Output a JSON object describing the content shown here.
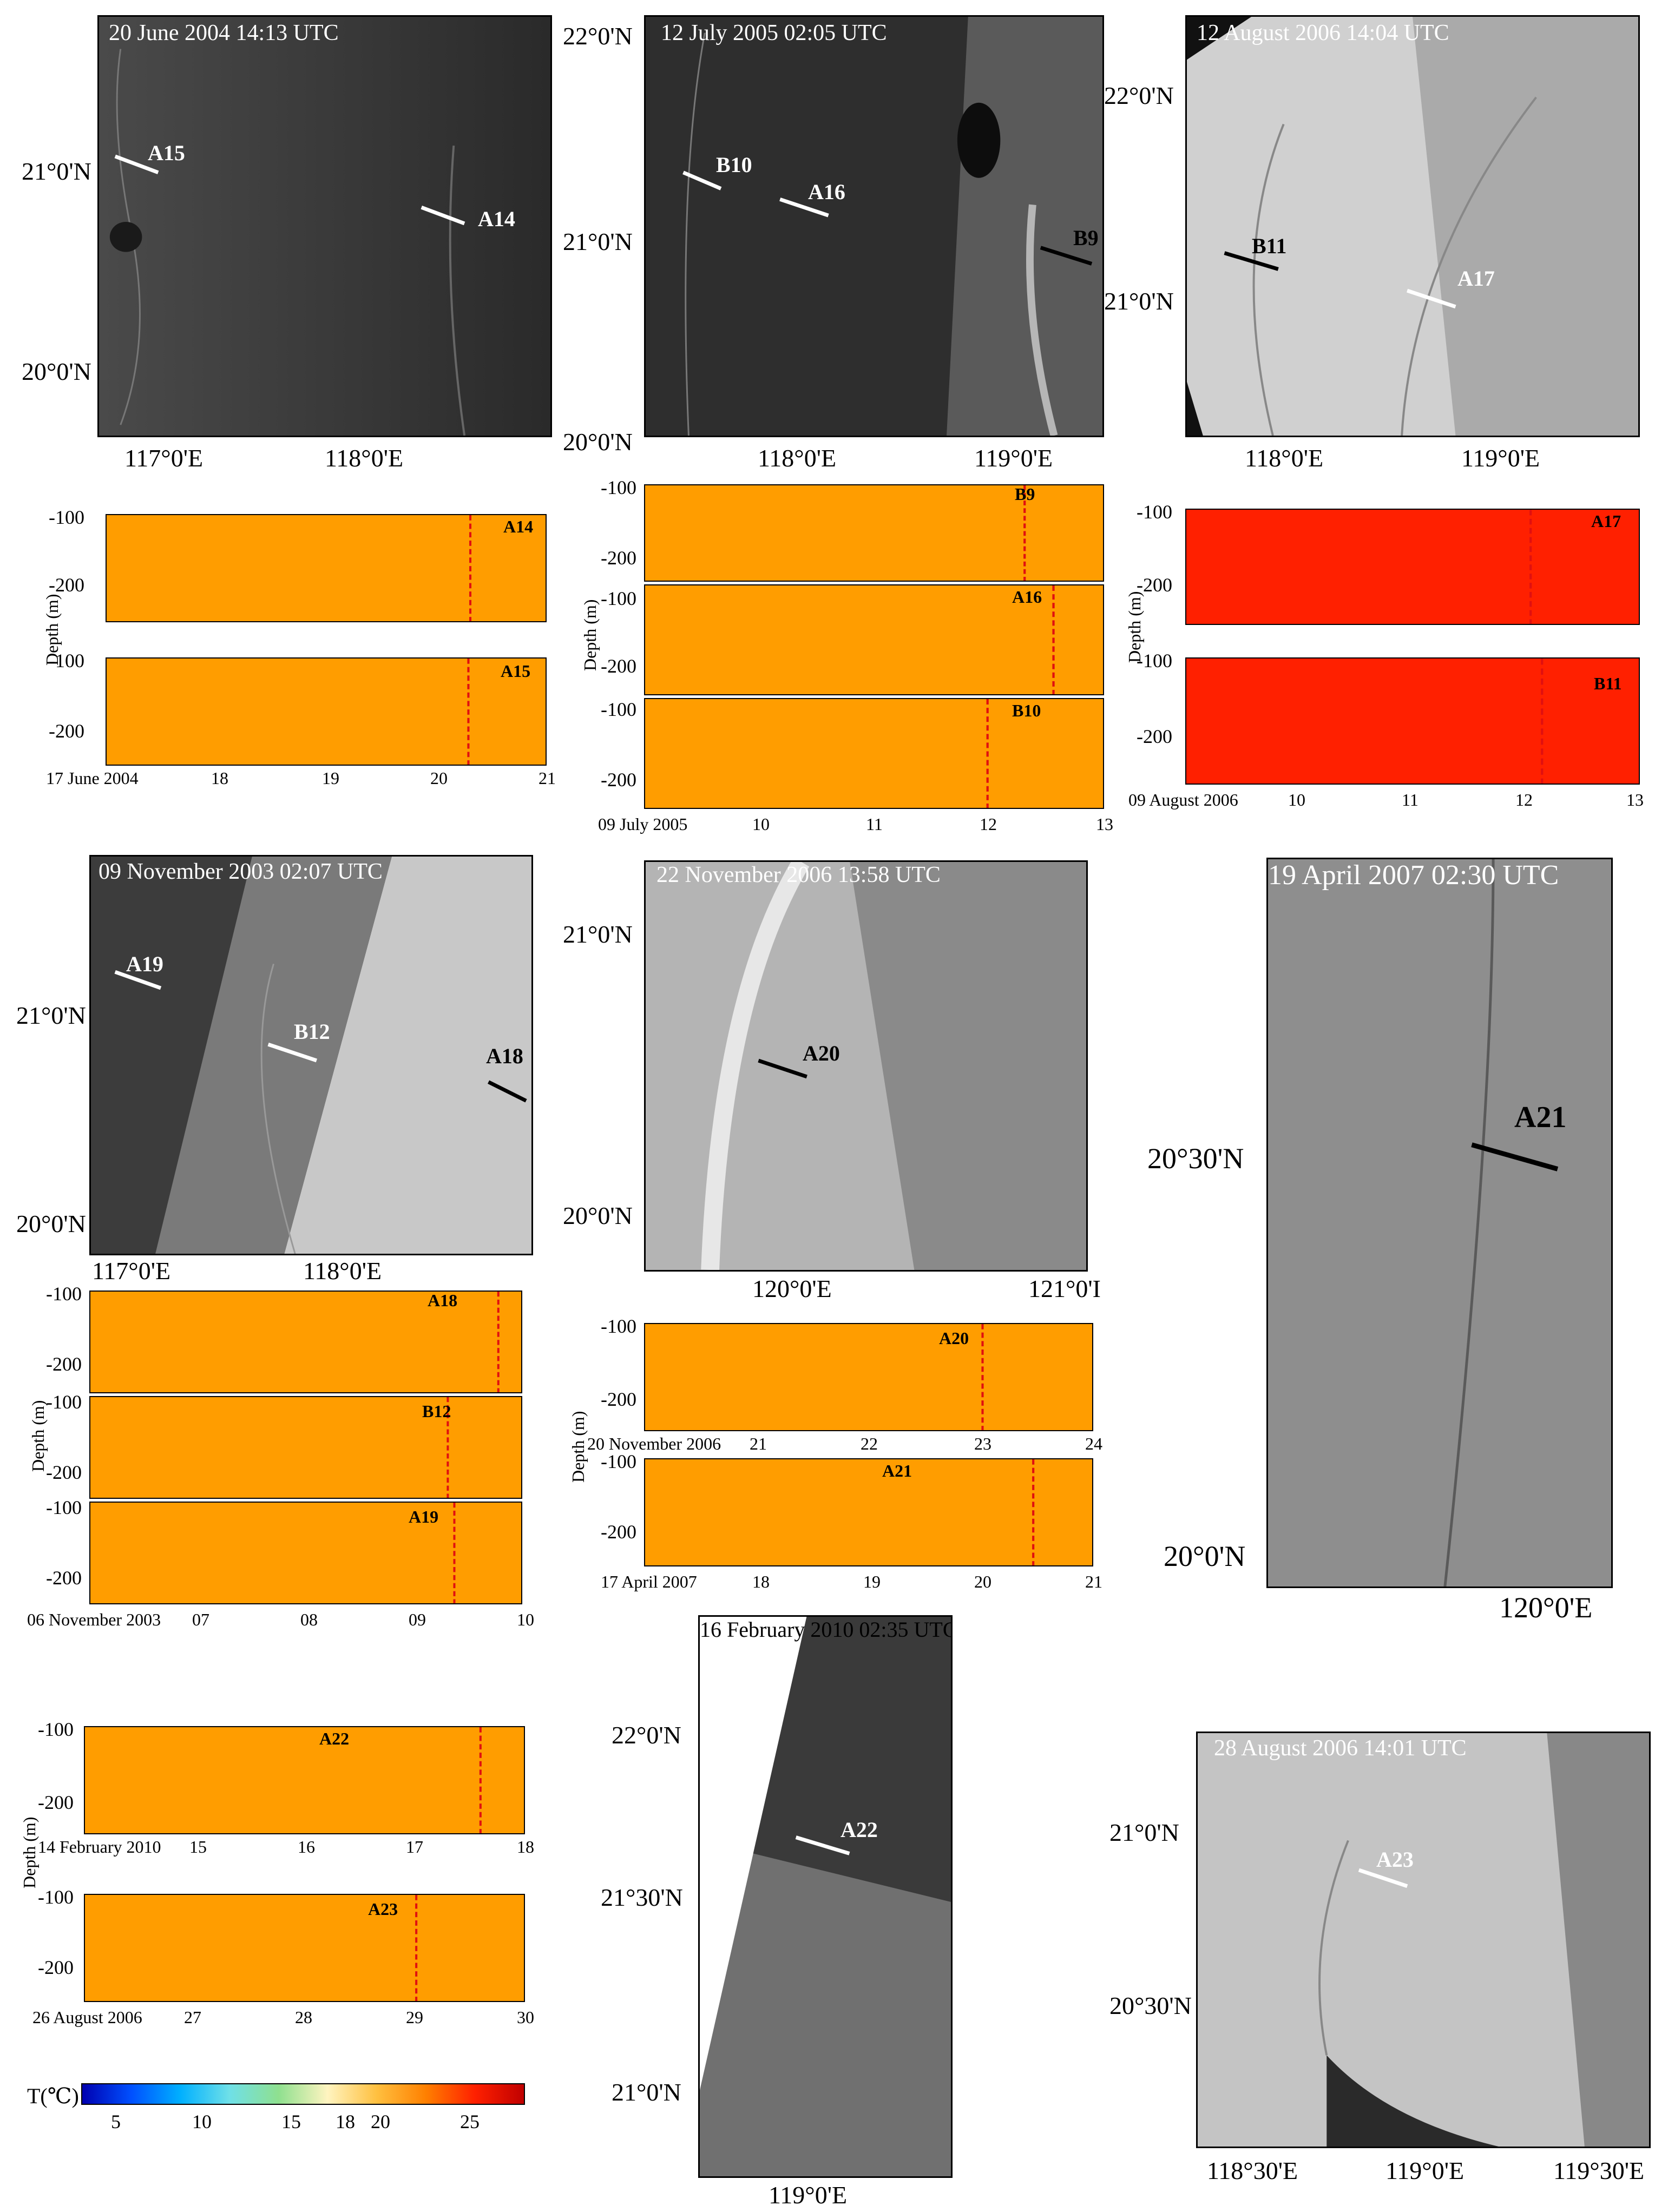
{
  "sar_panels": [
    {
      "id": "p1",
      "stamp": "20 June 2004 14:13 UTC",
      "lats": [
        "21°0'N",
        "20°0'N"
      ],
      "lons": [
        "117°0'E",
        "118°0'E"
      ],
      "arrows": [
        {
          "label": "A15",
          "color": "white"
        },
        {
          "label": "A14",
          "color": "white"
        }
      ],
      "tone": "#3a3a3a"
    },
    {
      "id": "p2",
      "stamp": "12 July 2005 02:05 UTC",
      "lats": [
        "22°0'N",
        "21°0'N",
        "20°0'N"
      ],
      "lons": [
        "118°0'E",
        "119°0'E"
      ],
      "arrows": [
        {
          "label": "B10",
          "color": "white"
        },
        {
          "label": "A16",
          "color": "white"
        },
        {
          "label": "B9",
          "color": "black"
        }
      ],
      "tone": "#2e2e2e"
    },
    {
      "id": "p3",
      "stamp": "12 August 2006 14:04 UTC",
      "lats": [
        "22°0'N",
        "21°0'N"
      ],
      "lons": [
        "118°0'E",
        "119°0'E"
      ],
      "arrows": [
        {
          "label": "B11",
          "color": "black"
        },
        {
          "label": "A17",
          "color": "white"
        }
      ],
      "tone": "#c8c8c8"
    },
    {
      "id": "p4",
      "stamp": "09 November 2003 02:07 UTC",
      "lats": [
        "21°0'N",
        "20°0'N"
      ],
      "lons": [
        "117°0'E",
        "118°0'E"
      ],
      "arrows": [
        {
          "label": "A19",
          "color": "white"
        },
        {
          "label": "B12",
          "color": "white"
        },
        {
          "label": "A18",
          "color": "black"
        }
      ],
      "tone": "#5a5a5a"
    },
    {
      "id": "p5",
      "stamp": "22 November 2006 13:58 UTC",
      "lats": [
        "21°0'N",
        "20°0'N"
      ],
      "lons": [
        "120°0'E",
        "121°0'I"
      ],
      "arrows": [
        {
          "label": "A20",
          "color": "black"
        }
      ],
      "tone": "#9e9e9e"
    },
    {
      "id": "p6",
      "stamp": "19 April 2007 02:30 UTC",
      "lats": [
        "20°30'N",
        "20°0'N"
      ],
      "lons": [
        "120°0'E"
      ],
      "arrows": [
        {
          "label": "A21",
          "color": "black"
        }
      ],
      "tone": "#8a8a8a"
    },
    {
      "id": "p7",
      "stamp": "16 February 2010 02:35 UTC",
      "lats": [
        "22°0'N",
        "21°30'N",
        "21°0'N"
      ],
      "lons": [
        "119°0'E"
      ],
      "arrows": [
        {
          "label": "A22",
          "color": "white"
        }
      ],
      "tone": "#6a6a6a"
    },
    {
      "id": "p8",
      "stamp": "28 August 2006 14:01 UTC",
      "lats": [
        "21°0'N",
        "20°30'N"
      ],
      "lons": [
        "118°30'E",
        "119°0'E",
        "119°30'E"
      ],
      "arrows": [
        {
          "label": "A23",
          "color": "white"
        }
      ],
      "tone": "#bdbdbd"
    }
  ],
  "section_groups": [
    {
      "id": "g1",
      "ylabel": "Depth (m)",
      "yticks": [
        "-100",
        "-200"
      ],
      "xticks": [
        "17 June 2004",
        "18",
        "19",
        "20",
        "21"
      ],
      "sections": [
        {
          "label": "A14"
        },
        {
          "label": "A15"
        }
      ]
    },
    {
      "id": "g2",
      "ylabel": "Depth (m)",
      "yticks": [
        "-100",
        "-200"
      ],
      "xticks": [
        "09 July 2005",
        "10",
        "11",
        "12",
        "13"
      ],
      "sections": [
        {
          "label": "B9"
        },
        {
          "label": "A16"
        },
        {
          "label": "B10"
        }
      ]
    },
    {
      "id": "g3",
      "ylabel": "Depth (m)",
      "yticks": [
        "-100",
        "-200"
      ],
      "xticks": [
        "09 August 2006",
        "10",
        "11",
        "12",
        "13"
      ],
      "sections": [
        {
          "label": "A17"
        },
        {
          "label": "B11"
        }
      ]
    },
    {
      "id": "g4",
      "ylabel": "Depth (m)",
      "yticks": [
        "-100",
        "-200"
      ],
      "xticks": [
        "06 November 2003",
        "07",
        "08",
        "09",
        "10"
      ],
      "sections": [
        {
          "label": "A18"
        },
        {
          "label": "B12"
        },
        {
          "label": "A19"
        }
      ]
    },
    {
      "id": "g5",
      "ylabel": "Depth (m)",
      "yticks": [
        "-100",
        "-200"
      ],
      "xticks_a": [
        "20 November 2006",
        "21",
        "22",
        "23",
        "24"
      ],
      "xticks_b": [
        "17 April 2007",
        "18",
        "19",
        "20",
        "21"
      ],
      "sections": [
        {
          "label": "A20"
        },
        {
          "label": "A21"
        }
      ]
    },
    {
      "id": "g6",
      "ylabel": "Depth (m)",
      "yticks": [
        "-100",
        "-200"
      ],
      "xticks_a": [
        "14 February 2010",
        "15",
        "16",
        "17",
        "18"
      ],
      "xticks_b": [
        "26 August 2006",
        "27",
        "28",
        "29",
        "30"
      ],
      "sections": [
        {
          "label": "A22"
        },
        {
          "label": "A23"
        }
      ]
    }
  ],
  "colorbar": {
    "label": "T(℃)",
    "ticks": [
      "5",
      "10",
      "15",
      "18",
      "20",
      "25"
    ],
    "colors": [
      "#0000b0",
      "#0050ff",
      "#00b0ff",
      "#6fe0e8",
      "#8fe08f",
      "#fff4c0",
      "#ffc040",
      "#ff8000",
      "#ff2000",
      "#c00000"
    ]
  }
}
